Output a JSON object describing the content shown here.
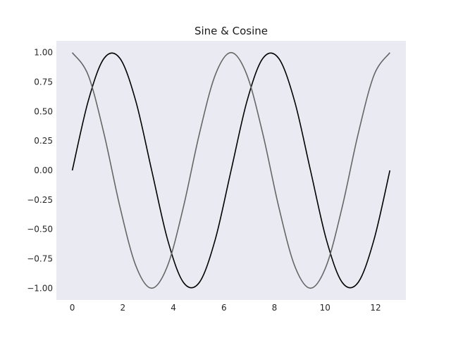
{
  "chart_data": {
    "type": "line",
    "title": "Sine & Cosine",
    "xlabel": "",
    "ylabel": "",
    "xlim": [
      -0.63,
      13.2
    ],
    "ylim": [
      -1.1,
      1.1
    ],
    "x_ticks": [
      0,
      2,
      4,
      6,
      8,
      10,
      12
    ],
    "x_tick_labels": [
      "0",
      "2",
      "4",
      "6",
      "8",
      "10",
      "12"
    ],
    "y_ticks": [
      1.0,
      0.75,
      0.5,
      0.25,
      0.0,
      -0.25,
      -0.5,
      -0.75,
      -1.0
    ],
    "y_tick_labels": [
      "1.00",
      "0.75",
      "0.50",
      "0.25",
      "0.00",
      "−0.25",
      "−0.50",
      "−0.75",
      "−1.00"
    ],
    "grid": false,
    "background_color": "#eaeaf2",
    "series": [
      {
        "color": "#000000",
        "x": [
          0,
          0.6283,
          1.2566,
          1.885,
          2.5133,
          3.1416,
          3.7699,
          4.3982,
          5.0265,
          5.6549,
          6.2832,
          6.9115,
          7.5398,
          8.1681,
          8.7965,
          9.4248,
          10.0531,
          10.6814,
          11.3097,
          11.9381,
          12.5664
        ],
        "y": [
          0,
          0.5878,
          0.9511,
          0.9511,
          0.5878,
          0,
          -0.5878,
          -0.9511,
          -0.9511,
          -0.5878,
          0,
          0.5878,
          0.9511,
          0.9511,
          0.5878,
          0,
          -0.5878,
          -0.9511,
          -0.9511,
          -0.5878,
          0
        ]
      },
      {
        "color": "#666666",
        "x": [
          0,
          0.6283,
          1.2566,
          1.885,
          2.5133,
          3.1416,
          3.7699,
          4.3982,
          5.0265,
          5.6549,
          6.2832,
          6.9115,
          7.5398,
          8.1681,
          8.7965,
          9.4248,
          10.0531,
          10.6814,
          11.3097,
          11.9381,
          12.5664
        ],
        "y": [
          1,
          0.809,
          0.309,
          -0.309,
          -0.809,
          -1,
          -0.809,
          -0.309,
          0.309,
          0.809,
          1,
          0.809,
          0.309,
          -0.309,
          -0.809,
          -1,
          -0.809,
          -0.309,
          0.309,
          0.809,
          1
        ]
      }
    ]
  }
}
